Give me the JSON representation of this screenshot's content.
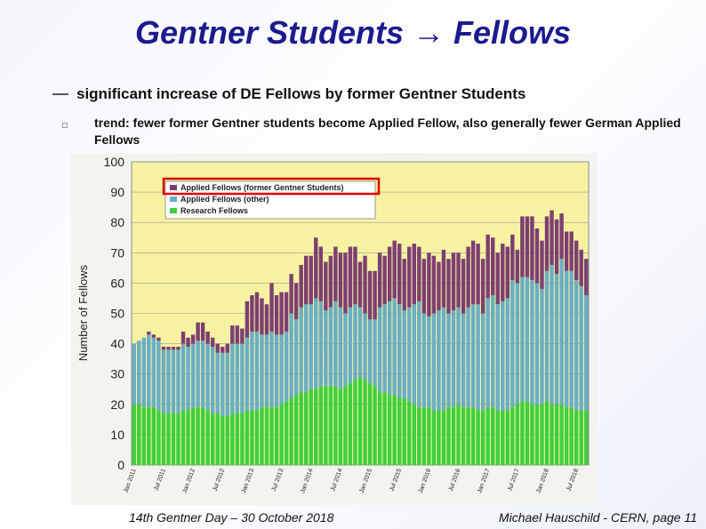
{
  "title": "Gentner Students → Fellows",
  "bullets": [
    {
      "text": "significant increase of DE Fellows by former Gentner Students",
      "sub": [
        "trend: fewer former Gentner students become Applied Fellow, also generally fewer German Applied Fellows"
      ]
    }
  ],
  "footer": {
    "left": "14th Gentner Day – 30 October 2018",
    "right": "Michael Hauschild - CERN, page 11"
  },
  "chart_data": {
    "type": "stacked_bar",
    "y_label": "Number of Fellows",
    "ylim": [
      0,
      100
    ],
    "yticks": [
      0,
      10,
      20,
      30,
      40,
      50,
      60,
      70,
      80,
      90,
      100
    ],
    "grid": true,
    "legend": "top-left",
    "categories": [
      "Jan 2011",
      null,
      null,
      null,
      null,
      null,
      "Jul 2011",
      null,
      null,
      null,
      null,
      null,
      "Jan 2012",
      null,
      null,
      null,
      null,
      null,
      "Jul 2012",
      null,
      null,
      null,
      null,
      null,
      "Jan 2013",
      null,
      null,
      null,
      null,
      null,
      "Jul 2013",
      null,
      null,
      null,
      null,
      null,
      "Jan 2014",
      null,
      null,
      null,
      null,
      null,
      "Jul 2014",
      null,
      null,
      null,
      null,
      null,
      "Jan 2015",
      null,
      null,
      null,
      null,
      null,
      "Jul 2015",
      null,
      null,
      null,
      null,
      null,
      "Jan 2016",
      null,
      null,
      null,
      null,
      null,
      "Jul 2016",
      null,
      null,
      null,
      null,
      null,
      "Jan 2017",
      null,
      null,
      null,
      null,
      null,
      "Jul 2017",
      null,
      null,
      null,
      null,
      null,
      "Jan 2018",
      null,
      null,
      null,
      null,
      null,
      "Jul 2018",
      null,
      null
    ],
    "series": [
      {
        "name": "Applied Fellows (former Gentner Students)",
        "color": "#7d3f72",
        "values": [
          0,
          0,
          0,
          1,
          1,
          1,
          1,
          1,
          1,
          1,
          4,
          3,
          3,
          6,
          6,
          4,
          3,
          3,
          2,
          3,
          6,
          6,
          5,
          12,
          12,
          13,
          12,
          10,
          16,
          13,
          14,
          13,
          13,
          12,
          14,
          16,
          16,
          20,
          18,
          16,
          17,
          18,
          18,
          20,
          20,
          19,
          15,
          19,
          16,
          16,
          18,
          16,
          18,
          19,
          20,
          17,
          20,
          20,
          18,
          18,
          21,
          19,
          16,
          19,
          18,
          19,
          18,
          18,
          20,
          21,
          20,
          18,
          21,
          19,
          17,
          19,
          17,
          15,
          11,
          20,
          20,
          21,
          18,
          16,
          18,
          18,
          18,
          15,
          13,
          13,
          13,
          12,
          12
        ]
      },
      {
        "name": "Applied Fellows (other)",
        "color": "#6aaec4",
        "values": [
          20,
          21,
          23,
          24,
          23,
          23,
          21,
          21,
          21,
          21,
          22,
          21,
          21,
          22,
          22,
          22,
          22,
          20,
          21,
          21,
          23,
          23,
          23,
          24,
          26,
          26,
          24,
          24,
          25,
          24,
          23,
          23,
          28,
          25,
          28,
          29,
          28,
          30,
          28,
          25,
          26,
          28,
          27,
          24,
          25,
          25,
          23,
          22,
          21,
          22,
          28,
          29,
          31,
          32,
          31,
          29,
          31,
          33,
          35,
          31,
          30,
          32,
          33,
          34,
          31,
          32,
          32,
          31,
          33,
          34,
          35,
          32,
          36,
          37,
          35,
          36,
          37,
          42,
          40,
          41,
          41,
          41,
          40,
          38,
          43,
          46,
          43,
          48,
          45,
          45,
          43,
          41,
          38
        ]
      },
      {
        "name": "Research Fellows",
        "color": "#3fcf3f",
        "values": [
          20,
          20,
          19,
          19,
          19,
          18,
          17,
          17,
          17,
          17,
          18,
          18,
          19,
          19,
          19,
          18,
          17,
          17,
          16,
          16,
          17,
          17,
          17,
          18,
          18,
          18,
          19,
          19,
          19,
          19,
          20,
          21,
          22,
          23,
          24,
          24,
          25,
          25,
          26,
          26,
          26,
          26,
          25,
          26,
          27,
          28,
          29,
          28,
          27,
          26,
          24,
          24,
          23,
          23,
          22,
          22,
          21,
          20,
          19,
          19,
          19,
          18,
          18,
          18,
          19,
          19,
          20,
          19,
          19,
          19,
          18,
          18,
          19,
          19,
          18,
          18,
          18,
          19,
          20,
          21,
          21,
          20,
          20,
          20,
          21,
          20,
          20,
          20,
          19,
          19,
          18,
          18,
          18
        ]
      }
    ]
  }
}
